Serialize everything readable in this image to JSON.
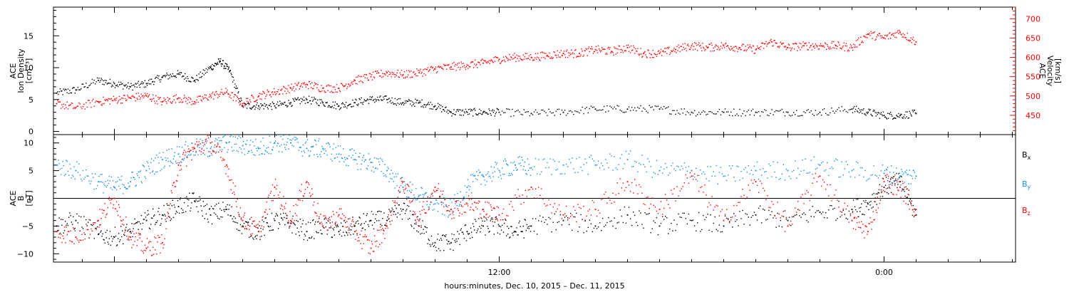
{
  "colors": {
    "black": "#000000",
    "red": "#ff0000",
    "blue": "#1a8ce6"
  },
  "xaxis": {
    "label": "hours:minutes, Dec. 10, 2015 – Dec. 11, 2015",
    "tick_labels": [
      "12:00",
      "0:00"
    ],
    "range_hours": [
      -1.9,
      28.1
    ]
  },
  "top_panel": {
    "left_label_lines": [
      "ACE",
      "Ion Density",
      "[cm⁻³]"
    ],
    "right_label_lines": [
      "ACE",
      "Velocity",
      "[km/s]"
    ]
  },
  "bottom_panel": {
    "left_label_lines": [
      "ACE",
      "B",
      "[nT]"
    ],
    "legend": [
      {
        "base": "B",
        "sub": "x",
        "color": "#000000"
      },
      {
        "base": "B",
        "sub": "y",
        "color": "#1a8ce6"
      },
      {
        "base": "B",
        "sub": "z",
        "color": "#ff0000"
      }
    ]
  },
  "chart_data": [
    {
      "type": "scatter",
      "panel": "top",
      "x_unit": "hours since Dec. 10, 2015 00:00",
      "xlim": [
        -1.9,
        28.1
      ],
      "left_axis": {
        "ylabel": "ACE Ion Density [cm⁻³]",
        "ylim": [
          -0.5,
          19.5
        ],
        "ticks": [
          0,
          5,
          10,
          15
        ],
        "ticklabels": [
          "0",
          "5",
          "10",
          "15"
        ],
        "color": "#000000"
      },
      "right_axis": {
        "ylabel": "ACE Velocity [km/s]",
        "ylim": [
          400,
          730
        ],
        "ticks": [
          450,
          500,
          550,
          600,
          650,
          700
        ],
        "ticklabels": [
          "450",
          "500",
          "550",
          "600",
          "650",
          "700"
        ],
        "color": "#ff0000"
      },
      "series": [
        {
          "axis": "left",
          "color": "#000000",
          "points": [
            [
              -1.8,
              6.0
            ],
            [
              -1.2,
              6.5
            ],
            [
              -0.5,
              8.0
            ],
            [
              0.0,
              7.5
            ],
            [
              0.5,
              7.0
            ],
            [
              1.0,
              7.5
            ],
            [
              1.5,
              8.5
            ],
            [
              2.0,
              9.0
            ],
            [
              2.5,
              8.0
            ],
            [
              3.0,
              10.0
            ],
            [
              3.3,
              11.0
            ],
            [
              3.6,
              9.5
            ],
            [
              4.0,
              4.0
            ],
            [
              4.5,
              4.0
            ],
            [
              5.0,
              4.0
            ],
            [
              5.5,
              4.5
            ],
            [
              6.0,
              5.0
            ],
            [
              6.5,
              4.5
            ],
            [
              7.0,
              4.0
            ],
            [
              7.5,
              4.5
            ],
            [
              8.0,
              5.0
            ],
            [
              8.5,
              5.0
            ],
            [
              9.0,
              4.5
            ],
            [
              9.5,
              4.5
            ],
            [
              10.0,
              4.0
            ],
            [
              10.5,
              3.0
            ],
            [
              11.0,
              3.0
            ],
            [
              11.5,
              3.0
            ],
            [
              12.0,
              3.0
            ],
            [
              13.0,
              2.8
            ],
            [
              14.0,
              3.0
            ],
            [
              15.0,
              3.5
            ],
            [
              16.0,
              3.5
            ],
            [
              17.0,
              3.5
            ],
            [
              18.0,
              3.0
            ],
            [
              19.0,
              3.0
            ],
            [
              20.0,
              3.0
            ],
            [
              21.0,
              3.0
            ],
            [
              22.0,
              3.0
            ],
            [
              23.0,
              3.5
            ],
            [
              23.5,
              3.0
            ],
            [
              24.0,
              2.5
            ],
            [
              24.5,
              2.5
            ],
            [
              25.0,
              2.8
            ]
          ]
        },
        {
          "axis": "right",
          "color": "#ff0000",
          "points": [
            [
              -1.8,
              480
            ],
            [
              -1.2,
              470
            ],
            [
              -0.5,
              485
            ],
            [
              0.0,
              490
            ],
            [
              0.5,
              495
            ],
            [
              1.0,
              500
            ],
            [
              1.5,
              485
            ],
            [
              2.0,
              495
            ],
            [
              2.5,
              485
            ],
            [
              3.0,
              500
            ],
            [
              3.5,
              510
            ],
            [
              4.0,
              480
            ],
            [
              4.5,
              500
            ],
            [
              5.0,
              510
            ],
            [
              5.5,
              520
            ],
            [
              6.0,
              530
            ],
            [
              6.5,
              520
            ],
            [
              7.0,
              520
            ],
            [
              7.5,
              540
            ],
            [
              8.0,
              550
            ],
            [
              8.5,
              560
            ],
            [
              9.0,
              555
            ],
            [
              9.5,
              560
            ],
            [
              10.0,
              570
            ],
            [
              10.5,
              575
            ],
            [
              11.0,
              580
            ],
            [
              11.5,
              585
            ],
            [
              12.0,
              595
            ],
            [
              12.5,
              600
            ],
            [
              13.0,
              600
            ],
            [
              13.5,
              605
            ],
            [
              14.0,
              610
            ],
            [
              14.5,
              610
            ],
            [
              15.0,
              620
            ],
            [
              15.5,
              615
            ],
            [
              16.0,
              625
            ],
            [
              16.5,
              610
            ],
            [
              17.0,
              610
            ],
            [
              17.5,
              620
            ],
            [
              18.0,
              630
            ],
            [
              18.5,
              625
            ],
            [
              19.0,
              630
            ],
            [
              19.5,
              625
            ],
            [
              20.0,
              620
            ],
            [
              20.5,
              640
            ],
            [
              21.0,
              625
            ],
            [
              21.5,
              630
            ],
            [
              22.0,
              630
            ],
            [
              22.5,
              630
            ],
            [
              23.0,
              625
            ],
            [
              23.5,
              660
            ],
            [
              24.0,
              650
            ],
            [
              24.5,
              665
            ],
            [
              25.0,
              640
            ]
          ]
        }
      ]
    },
    {
      "type": "scatter",
      "panel": "bottom",
      "x_unit": "hours since Dec. 10, 2015 00:00",
      "xlim": [
        -1.9,
        28.1
      ],
      "ylabel": "ACE B [nT]",
      "ylim": [
        -11.5,
        11.5
      ],
      "ticks": [
        -10,
        -5,
        0,
        5,
        10
      ],
      "ticklabels": [
        "−10",
        "−5",
        "0",
        "5",
        "10"
      ],
      "zero_line": true,
      "series": [
        {
          "name": "Bx",
          "color": "#000000",
          "points": [
            [
              -1.8,
              -5.0
            ],
            [
              -1.2,
              -4.0
            ],
            [
              -0.5,
              -6.5
            ],
            [
              0.0,
              -7.0
            ],
            [
              0.5,
              -6.0
            ],
            [
              1.0,
              -4.0
            ],
            [
              1.5,
              -3.0
            ],
            [
              2.0,
              -1.5
            ],
            [
              2.5,
              -0.5
            ],
            [
              3.0,
              -3.0
            ],
            [
              3.5,
              -2.0
            ],
            [
              4.0,
              -5.0
            ],
            [
              4.5,
              -6.0
            ],
            [
              5.0,
              -4.0
            ],
            [
              5.5,
              -4.5
            ],
            [
              6.0,
              -6.0
            ],
            [
              6.5,
              -5.0
            ],
            [
              7.0,
              -6.0
            ],
            [
              7.5,
              -5.0
            ],
            [
              8.0,
              -4.0
            ],
            [
              8.5,
              -4.0
            ],
            [
              9.0,
              -2.0
            ],
            [
              9.5,
              -5.0
            ],
            [
              10.0,
              -8.0
            ],
            [
              10.5,
              -8.0
            ],
            [
              11.0,
              -6.0
            ],
            [
              11.5,
              -5.0
            ],
            [
              12.0,
              -5.0
            ],
            [
              12.5,
              -6.0
            ],
            [
              13.0,
              -5.0
            ],
            [
              14.0,
              -4.0
            ],
            [
              15.0,
              -5.0
            ],
            [
              16.0,
              -3.0
            ],
            [
              17.0,
              -5.0
            ],
            [
              18.0,
              -4.0
            ],
            [
              19.0,
              -5.0
            ],
            [
              20.0,
              -3.0
            ],
            [
              21.0,
              -4.0
            ],
            [
              22.0,
              -2.5
            ],
            [
              23.0,
              -2.0
            ],
            [
              23.5,
              -1.0
            ],
            [
              24.0,
              2.0
            ],
            [
              24.5,
              3.0
            ],
            [
              25.0,
              -3.0
            ]
          ]
        },
        {
          "name": "By",
          "color": "#1a8ce6",
          "points": [
            [
              -1.8,
              6.0
            ],
            [
              -1.2,
              5.0
            ],
            [
              -0.5,
              3.0
            ],
            [
              0.0,
              2.0
            ],
            [
              0.5,
              3.0
            ],
            [
              1.0,
              5.0
            ],
            [
              1.5,
              7.0
            ],
            [
              2.0,
              8.0
            ],
            [
              2.5,
              9.0
            ],
            [
              3.0,
              9.0
            ],
            [
              3.5,
              10.0
            ],
            [
              4.0,
              9.5
            ],
            [
              4.5,
              9.0
            ],
            [
              5.0,
              10.0
            ],
            [
              5.5,
              10.0
            ],
            [
              6.0,
              9.0
            ],
            [
              6.5,
              9.0
            ],
            [
              7.0,
              8.0
            ],
            [
              7.5,
              7.0
            ],
            [
              8.0,
              6.5
            ],
            [
              8.5,
              5.0
            ],
            [
              9.0,
              2.0
            ],
            [
              9.5,
              0.5
            ],
            [
              10.0,
              -1.0
            ],
            [
              10.5,
              -2.0
            ],
            [
              11.0,
              2.0
            ],
            [
              11.5,
              4.0
            ],
            [
              12.0,
              5.0
            ],
            [
              12.5,
              6.0
            ],
            [
              13.0,
              5.5
            ],
            [
              14.0,
              6.0
            ],
            [
              15.0,
              6.0
            ],
            [
              16.0,
              7.0
            ],
            [
              17.0,
              5.0
            ],
            [
              18.0,
              5.0
            ],
            [
              19.0,
              4.0
            ],
            [
              20.0,
              5.0
            ],
            [
              21.0,
              5.0
            ],
            [
              22.0,
              6.0
            ],
            [
              23.0,
              5.0
            ],
            [
              24.0,
              4.5
            ],
            [
              24.5,
              4.0
            ],
            [
              25.0,
              4.0
            ]
          ]
        },
        {
          "name": "Bz",
          "color": "#ff0000",
          "points": [
            [
              -1.8,
              -6.0
            ],
            [
              -1.2,
              -7.0
            ],
            [
              -0.5,
              -4.0
            ],
            [
              0.0,
              0.0
            ],
            [
              0.5,
              -7.0
            ],
            [
              1.0,
              -9.0
            ],
            [
              1.5,
              -8.0
            ],
            [
              2.0,
              6.0
            ],
            [
              2.5,
              9.0
            ],
            [
              3.0,
              10.0
            ],
            [
              3.5,
              6.0
            ],
            [
              4.0,
              -4.0
            ],
            [
              4.5,
              -6.0
            ],
            [
              5.0,
              2.0
            ],
            [
              5.5,
              -4.0
            ],
            [
              6.0,
              3.0
            ],
            [
              6.5,
              -5.0
            ],
            [
              7.0,
              -3.0
            ],
            [
              7.5,
              -6.0
            ],
            [
              8.0,
              -9.0
            ],
            [
              8.5,
              -5.0
            ],
            [
              9.0,
              3.0
            ],
            [
              9.5,
              -4.0
            ],
            [
              10.0,
              2.0
            ],
            [
              10.5,
              -2.0
            ],
            [
              11.0,
              -1.0
            ],
            [
              11.5,
              -2.0
            ],
            [
              12.0,
              -3.0
            ],
            [
              13.0,
              2.0
            ],
            [
              14.0,
              -3.0
            ],
            [
              15.0,
              -2.0
            ],
            [
              16.0,
              3.0
            ],
            [
              17.0,
              -2.0
            ],
            [
              18.0,
              4.0
            ],
            [
              19.0,
              -4.0
            ],
            [
              20.0,
              3.0
            ],
            [
              21.0,
              -5.0
            ],
            [
              22.0,
              4.0
            ],
            [
              23.0,
              -4.0
            ],
            [
              23.5,
              -6.0
            ],
            [
              24.0,
              3.0
            ],
            [
              24.5,
              2.0
            ],
            [
              25.0,
              -2.0
            ]
          ]
        }
      ]
    }
  ]
}
